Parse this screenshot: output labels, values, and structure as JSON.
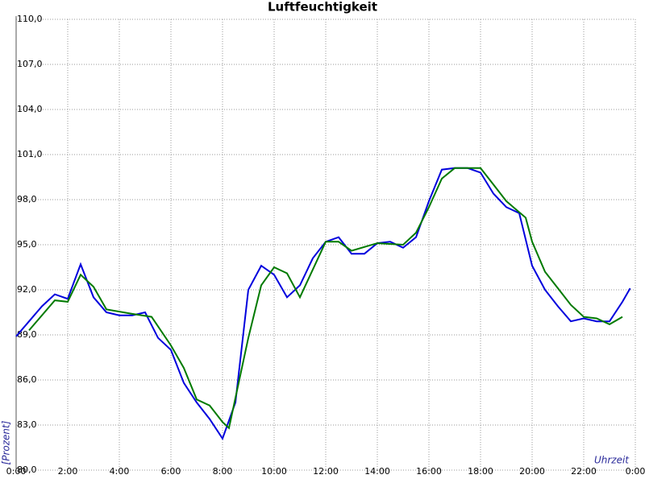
{
  "chart_data": {
    "type": "line",
    "title": "Luftfeuchtigkeit",
    "x_label": "Uhrzeit",
    "y_label": "[Prozent]",
    "xlim": [
      0,
      24
    ],
    "xticks": [
      {
        "value": 0,
        "label": "0:00"
      },
      {
        "value": 2,
        "label": "2:00"
      },
      {
        "value": 4,
        "label": "4:00"
      },
      {
        "value": 6,
        "label": "6:00"
      },
      {
        "value": 8,
        "label": "8:00"
      },
      {
        "value": 10,
        "label": "10:00"
      },
      {
        "value": 12,
        "label": "12:00"
      },
      {
        "value": 14,
        "label": "14:00"
      },
      {
        "value": 16,
        "label": "16:00"
      },
      {
        "value": 18,
        "label": "18:00"
      },
      {
        "value": 20,
        "label": "20:00"
      },
      {
        "value": 22,
        "label": "22:00"
      },
      {
        "value": 24,
        "label": "0:00"
      }
    ],
    "ylim": [
      80,
      110
    ],
    "yticks": [
      {
        "value": 80,
        "label": "80,0"
      },
      {
        "value": 83,
        "label": "83,0"
      },
      {
        "value": 86,
        "label": "86,0"
      },
      {
        "value": 89,
        "label": "89,0"
      },
      {
        "value": 92,
        "label": "92,0"
      },
      {
        "value": 95,
        "label": "95,0"
      },
      {
        "value": 98,
        "label": "98,0"
      },
      {
        "value": 101,
        "label": "101,0"
      },
      {
        "value": 104,
        "label": "104,0"
      },
      {
        "value": 107,
        "label": "107,0"
      },
      {
        "value": 110,
        "label": "110,0"
      }
    ],
    "grid": true,
    "series": [
      {
        "color": "#0000dd",
        "x": [
          0,
          0.5,
          1,
          1.5,
          2,
          2.5,
          3,
          3.5,
          4,
          4.5,
          5,
          5.5,
          6,
          6.5,
          7,
          7.5,
          8,
          8.5,
          9,
          9.5,
          10,
          10.5,
          11,
          11.5,
          12,
          12.5,
          13,
          13.5,
          14,
          14.5,
          15,
          15.5,
          16,
          16.5,
          17,
          17.5,
          18,
          18.5,
          19,
          19.5,
          20,
          20.5,
          21,
          21.5,
          22,
          22.5,
          23,
          23.5,
          23.8
        ],
        "values": [
          88.9,
          89.9,
          90.9,
          91.7,
          91.4,
          93.7,
          91.5,
          90.5,
          90.3,
          90.3,
          90.5,
          88.8,
          88.0,
          85.8,
          84.5,
          83.4,
          82.1,
          84.5,
          92.0,
          93.6,
          93.0,
          91.5,
          92.3,
          94.1,
          95.2,
          95.5,
          94.4,
          94.4,
          95.1,
          95.2,
          94.8,
          95.5,
          97.9,
          100.0,
          100.1,
          100.1,
          99.8,
          98.4,
          97.5,
          97.1,
          93.6,
          92.0,
          90.9,
          89.9,
          90.1,
          89.9,
          89.9,
          91.2,
          92.1
        ]
      },
      {
        "color": "#007a00",
        "x": [
          0.5,
          1.5,
          2,
          2.5,
          3,
          3.5,
          4.5,
          5.25,
          6,
          6.5,
          7,
          7.5,
          8,
          8.25,
          9,
          9.5,
          10,
          10.5,
          11,
          12,
          12.5,
          13,
          14,
          15,
          15.5,
          16,
          16.5,
          17,
          18,
          18.5,
          19,
          19.75,
          20,
          20.5,
          21,
          21.5,
          22,
          22.5,
          23,
          23.5
        ],
        "values": [
          89.3,
          91.3,
          91.2,
          93.0,
          92.2,
          90.7,
          90.4,
          90.2,
          88.3,
          86.8,
          84.7,
          84.3,
          83.2,
          82.8,
          88.8,
          92.3,
          93.5,
          93.1,
          91.5,
          95.2,
          95.2,
          94.6,
          95.1,
          95.0,
          95.8,
          97.5,
          99.4,
          100.1,
          100.1,
          99.0,
          97.9,
          96.8,
          95.2,
          93.2,
          92.1,
          91.0,
          90.2,
          90.1,
          89.7,
          90.2
        ]
      }
    ]
  }
}
